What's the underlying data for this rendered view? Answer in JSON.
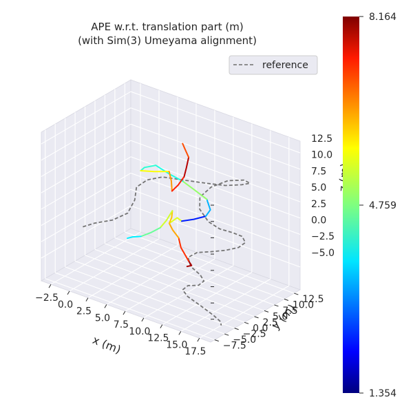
{
  "chart_data": {
    "type": "line",
    "projection": "3d",
    "title": "APE w.r.t. translation part (m)",
    "subtitle": "(with Sim(3) Umeyama alignment)",
    "xlabel": "x (m)",
    "ylabel": "y (m)",
    "zlabel": "z (m)",
    "x_ticks": [
      "−2.5",
      "0.0",
      "2.5",
      "5.0",
      "7.5",
      "10.0",
      "12.5",
      "15.0",
      "17.5"
    ],
    "y_ticks": [
      "−7.5",
      "−5.0",
      "−2.5",
      "0.0",
      "2.5",
      "5.0",
      "7.5",
      "10.0",
      "12.5"
    ],
    "z_ticks": [
      "−5.0",
      "−2.5",
      "0.0",
      "2.5",
      "5.0",
      "7.5",
      "10.0",
      "12.5"
    ],
    "legend": {
      "label": "reference",
      "placement": "top-right",
      "style": "dashed",
      "color": "#808080"
    },
    "colorbar": {
      "colormap": "jet",
      "min": 1.354,
      "mid": 4.759,
      "max": 8.164,
      "labels": [
        "8.164",
        "4.759",
        "1.354"
      ]
    },
    "colors": {
      "pane": "#eaeaf2",
      "grid": "#ffffff",
      "reference": "#737373"
    },
    "estimate_segments": [
      {
        "x": [
          8.6,
          9.2,
          9.0
        ],
        "y": [
          5.0,
          5.0,
          4.6
        ],
        "z": [
          -6.0,
          -5.6,
          -4.8
        ],
        "error": 7.9
      },
      {
        "x": [
          9.0,
          8.2,
          8.0
        ],
        "y": [
          4.6,
          4.2,
          4.0
        ],
        "z": [
          -4.8,
          -3.0,
          -1.5
        ],
        "error": 7.0
      },
      {
        "x": [
          8.0,
          7.3,
          7.0
        ],
        "y": [
          4.0,
          3.8,
          3.5
        ],
        "z": [
          -1.5,
          -0.5,
          0.5
        ],
        "error": 6.2
      },
      {
        "x": [
          7.0,
          7.8,
          8.2
        ],
        "y": [
          3.5,
          4.0,
          4.4
        ],
        "z": [
          0.5,
          1.5,
          1.0
        ],
        "error": 5.4
      },
      {
        "x": [
          8.2,
          9.5,
          10.8
        ],
        "y": [
          4.4,
          5.0,
          5.6
        ],
        "z": [
          1.0,
          1.6,
          2.4
        ],
        "error": 2.4
      },
      {
        "x": [
          10.8,
          11.2,
          10.5
        ],
        "y": [
          5.6,
          6.0,
          6.4
        ],
        "z": [
          2.4,
          3.4,
          4.6
        ],
        "error": 3.4
      },
      {
        "x": [
          10.5,
          9.0,
          7.8
        ],
        "y": [
          6.4,
          6.0,
          5.4
        ],
        "z": [
          4.6,
          5.6,
          6.6
        ],
        "error": 4.9
      },
      {
        "x": [
          7.8,
          6.2,
          4.6
        ],
        "y": [
          5.4,
          5.0,
          4.6
        ],
        "z": [
          6.6,
          7.2,
          8.0
        ],
        "error": 4.1
      },
      {
        "x": [
          4.6,
          3.4,
          3.0
        ],
        "y": [
          4.6,
          4.0,
          3.8
        ],
        "z": [
          8.0,
          7.4,
          6.8
        ],
        "error": 4.2
      },
      {
        "x": [
          3.0,
          4.6,
          6.4
        ],
        "y": [
          3.8,
          4.2,
          4.6
        ],
        "z": [
          6.8,
          7.2,
          7.8
        ],
        "error": 5.6
      },
      {
        "x": [
          6.4,
          6.8,
          7.0
        ],
        "y": [
          4.6,
          4.4,
          4.2
        ],
        "z": [
          7.8,
          6.6,
          5.2
        ],
        "error": 6.3
      },
      {
        "x": [
          7.0,
          7.6,
          8.2
        ],
        "y": [
          4.2,
          4.6,
          5.0
        ],
        "z": [
          5.2,
          6.2,
          7.6
        ],
        "error": 7.1
      },
      {
        "x": [
          8.2,
          8.4,
          8.6
        ],
        "y": [
          5.0,
          5.2,
          5.4
        ],
        "z": [
          7.6,
          9.0,
          10.6
        ],
        "error": 7.8
      },
      {
        "x": [
          8.6,
          8.2,
          8.0
        ],
        "y": [
          5.4,
          5.2,
          5.0
        ],
        "z": [
          10.6,
          11.8,
          12.6
        ],
        "error": 6.8
      },
      {
        "x": [
          7.0,
          7.6,
          7.8
        ],
        "y": [
          3.5,
          3.0,
          2.8
        ],
        "z": [
          0.5,
          1.8,
          3.0
        ],
        "error": 6.0
      },
      {
        "x": [
          7.8,
          7.2,
          6.6
        ],
        "y": [
          2.8,
          2.4,
          2.0
        ],
        "z": [
          3.0,
          1.4,
          0.2
        ],
        "error": 5.3
      },
      {
        "x": [
          6.6,
          5.4,
          4.2
        ],
        "y": [
          2.0,
          1.8,
          1.6
        ],
        "z": [
          0.2,
          -1.0,
          -2.0
        ],
        "error": 4.6
      },
      {
        "x": [
          4.2,
          3.2,
          2.6
        ],
        "y": [
          1.6,
          1.4,
          1.2
        ],
        "z": [
          -2.0,
          -2.4,
          -2.8
        ],
        "error": 3.8
      }
    ],
    "reference_path": {
      "x": [
        -2.0,
        -1.0,
        0.8,
        2.2,
        2.4,
        2.0,
        2.8,
        4.2,
        6.8,
        9.0,
        11.4,
        13.4,
        14.6,
        14.2,
        12.6,
        11.0,
        10.0,
        10.4,
        11.8,
        13.2,
        14.6,
        15.6,
        15.8,
        15.0,
        13.6,
        12.0,
        10.6,
        9.8,
        10.6,
        12.2,
        13.0,
        12.6,
        11.4,
        11.0,
        12.0,
        14.2,
        16.2,
        17.4,
        17.8
      ],
      "y": [
        -1.4,
        -0.4,
        0.8,
        2.0,
        3.4,
        4.6,
        5.8,
        7.0,
        8.0,
        8.8,
        9.4,
        9.8,
        9.6,
        8.8,
        7.8,
        6.6,
        5.6,
        4.8,
        4.4,
        4.6,
        5.2,
        5.8,
        6.2,
        6.0,
        5.4,
        4.6,
        3.8,
        3.0,
        2.2,
        1.6,
        1.0,
        0.4,
        0.0,
        -0.6,
        -1.2,
        -1.8,
        -2.4,
        -3.0,
        -3.6
      ],
      "z": [
        -2.0,
        -1.4,
        -0.6,
        0.6,
        2.2,
        3.6,
        4.6,
        5.2,
        5.4,
        5.6,
        6.0,
        6.8,
        7.6,
        8.2,
        7.8,
        6.6,
        5.0,
        3.6,
        2.4,
        1.8,
        1.6,
        1.2,
        0.2,
        -0.8,
        -1.6,
        -2.2,
        -2.6,
        -3.4,
        -4.2,
        -4.6,
        -5.0,
        -5.6,
        -6.0,
        -6.6,
        -7.0,
        -7.4,
        -7.8,
        -8.0,
        -8.2
      ]
    }
  }
}
